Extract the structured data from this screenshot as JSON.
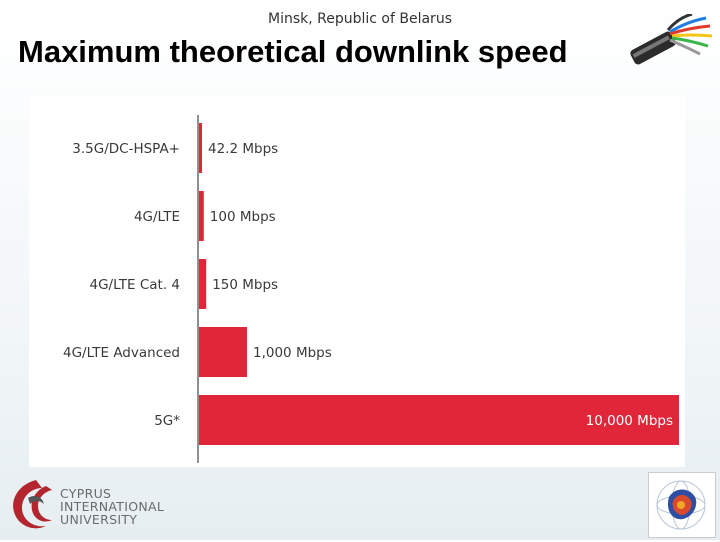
{
  "header": {
    "subtitle": "Minsk, Republic of Belarus",
    "title": "Maximum theoretical downlink speed"
  },
  "chart_data": {
    "type": "bar",
    "orientation": "horizontal",
    "categories": [
      "3.5G/DC-HSPA+",
      "4G/LTE",
      "4G/LTE Cat. 4",
      "4G/LTE Advanced",
      "5G*"
    ],
    "values": [
      42.2,
      100,
      150,
      1000,
      10000
    ],
    "value_labels": [
      "42.2 Mbps",
      "100 Mbps",
      "150 Mbps",
      "1,000 Mbps",
      "10,000 Mbps"
    ],
    "xlim": [
      0,
      10000
    ],
    "bar_color": "#e2263a",
    "grid": false
  },
  "logo": {
    "university_lines": [
      "CYPRUS",
      "INTERNATIONAL",
      "UNIVERSITY"
    ]
  },
  "colors": {
    "accent_red": "#e2263a",
    "logo_red": "#b3262e"
  }
}
